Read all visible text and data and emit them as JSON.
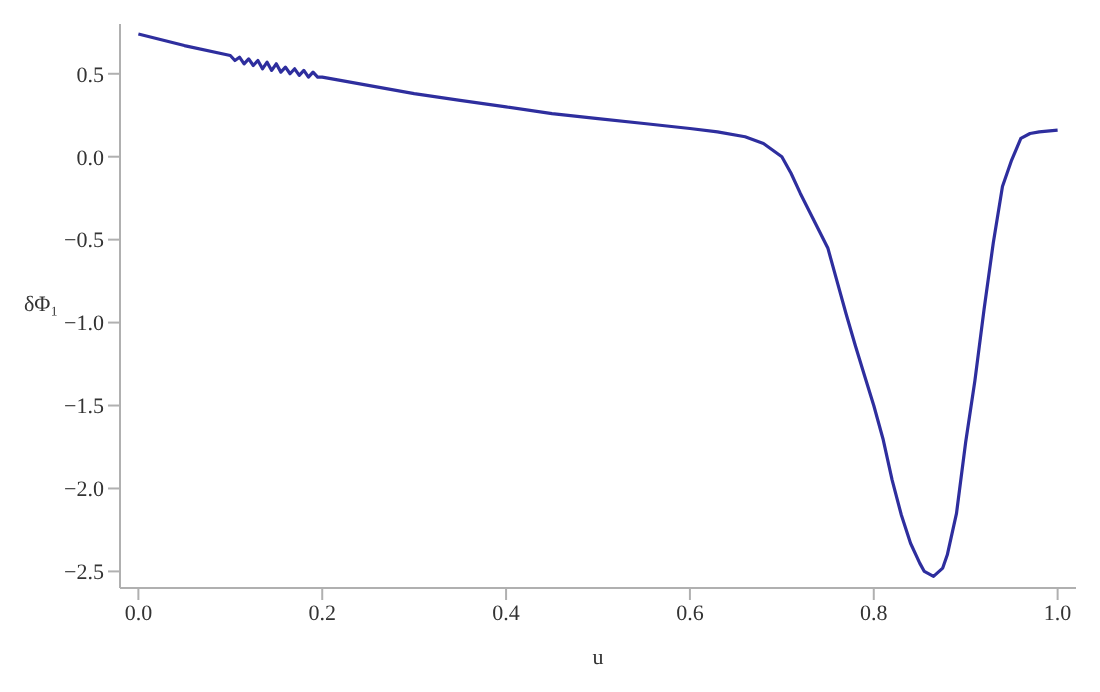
{
  "chart_data": {
    "type": "line",
    "xlabel": "u",
    "ylabel": "δΦ₁",
    "xlim": [
      -0.02,
      1.02
    ],
    "ylim": [
      -2.6,
      0.8
    ],
    "xticks": [
      {
        "value": 0,
        "label": "0.0"
      },
      0.2,
      0.4,
      0.6,
      0.8,
      {
        "value": 1,
        "label": "1.0"
      }
    ],
    "yticks": [
      {
        "value": -2.5,
        "label": "−2.5"
      },
      {
        "value": -2,
        "label": "−2.0"
      },
      {
        "value": -1.5,
        "label": "−1.5"
      },
      {
        "value": -1,
        "label": "−1.0"
      },
      {
        "value": -0.5,
        "label": "−0.5"
      },
      {
        "value": 0,
        "label": "0.0"
      },
      0.5
    ],
    "marker": "none",
    "line_style": "solid",
    "series": [
      {
        "color": "#2e2e9e",
        "x": [
          0,
          0.05,
          0.1,
          0.105,
          0.11,
          0.115,
          0.12,
          0.125,
          0.13,
          0.135,
          0.14,
          0.145,
          0.15,
          0.155,
          0.16,
          0.165,
          0.17,
          0.175,
          0.18,
          0.185,
          0.19,
          0.195,
          0.2,
          0.25,
          0.3,
          0.35,
          0.4,
          0.45,
          0.5,
          0.55,
          0.6,
          0.63,
          0.66,
          0.68,
          0.7,
          0.71,
          0.72,
          0.73,
          0.75,
          0.76,
          0.77,
          0.78,
          0.79,
          0.8,
          0.81,
          0.82,
          0.83,
          0.84,
          0.85,
          0.855,
          0.865,
          0.875,
          0.88,
          0.89,
          0.9,
          0.91,
          0.92,
          0.93,
          0.94,
          0.95,
          0.96,
          0.97,
          0.98,
          1.0
        ],
        "values": [
          0.74,
          0.67,
          0.61,
          0.58,
          0.6,
          0.56,
          0.59,
          0.55,
          0.58,
          0.53,
          0.57,
          0.52,
          0.56,
          0.51,
          0.54,
          0.5,
          0.53,
          0.49,
          0.52,
          0.48,
          0.51,
          0.48,
          0.48,
          0.43,
          0.38,
          0.34,
          0.3,
          0.26,
          0.23,
          0.2,
          0.17,
          0.15,
          0.12,
          0.08,
          0.0,
          -0.1,
          -0.22,
          -0.33,
          -0.55,
          -0.75,
          -0.95,
          -1.14,
          -1.32,
          -1.5,
          -1.7,
          -1.95,
          -2.16,
          -2.33,
          -2.45,
          -2.5,
          -2.53,
          -2.48,
          -2.4,
          -2.15,
          -1.72,
          -1.35,
          -0.92,
          -0.52,
          -0.18,
          -0.02,
          0.11,
          0.14,
          0.15,
          0.16
        ]
      }
    ]
  }
}
